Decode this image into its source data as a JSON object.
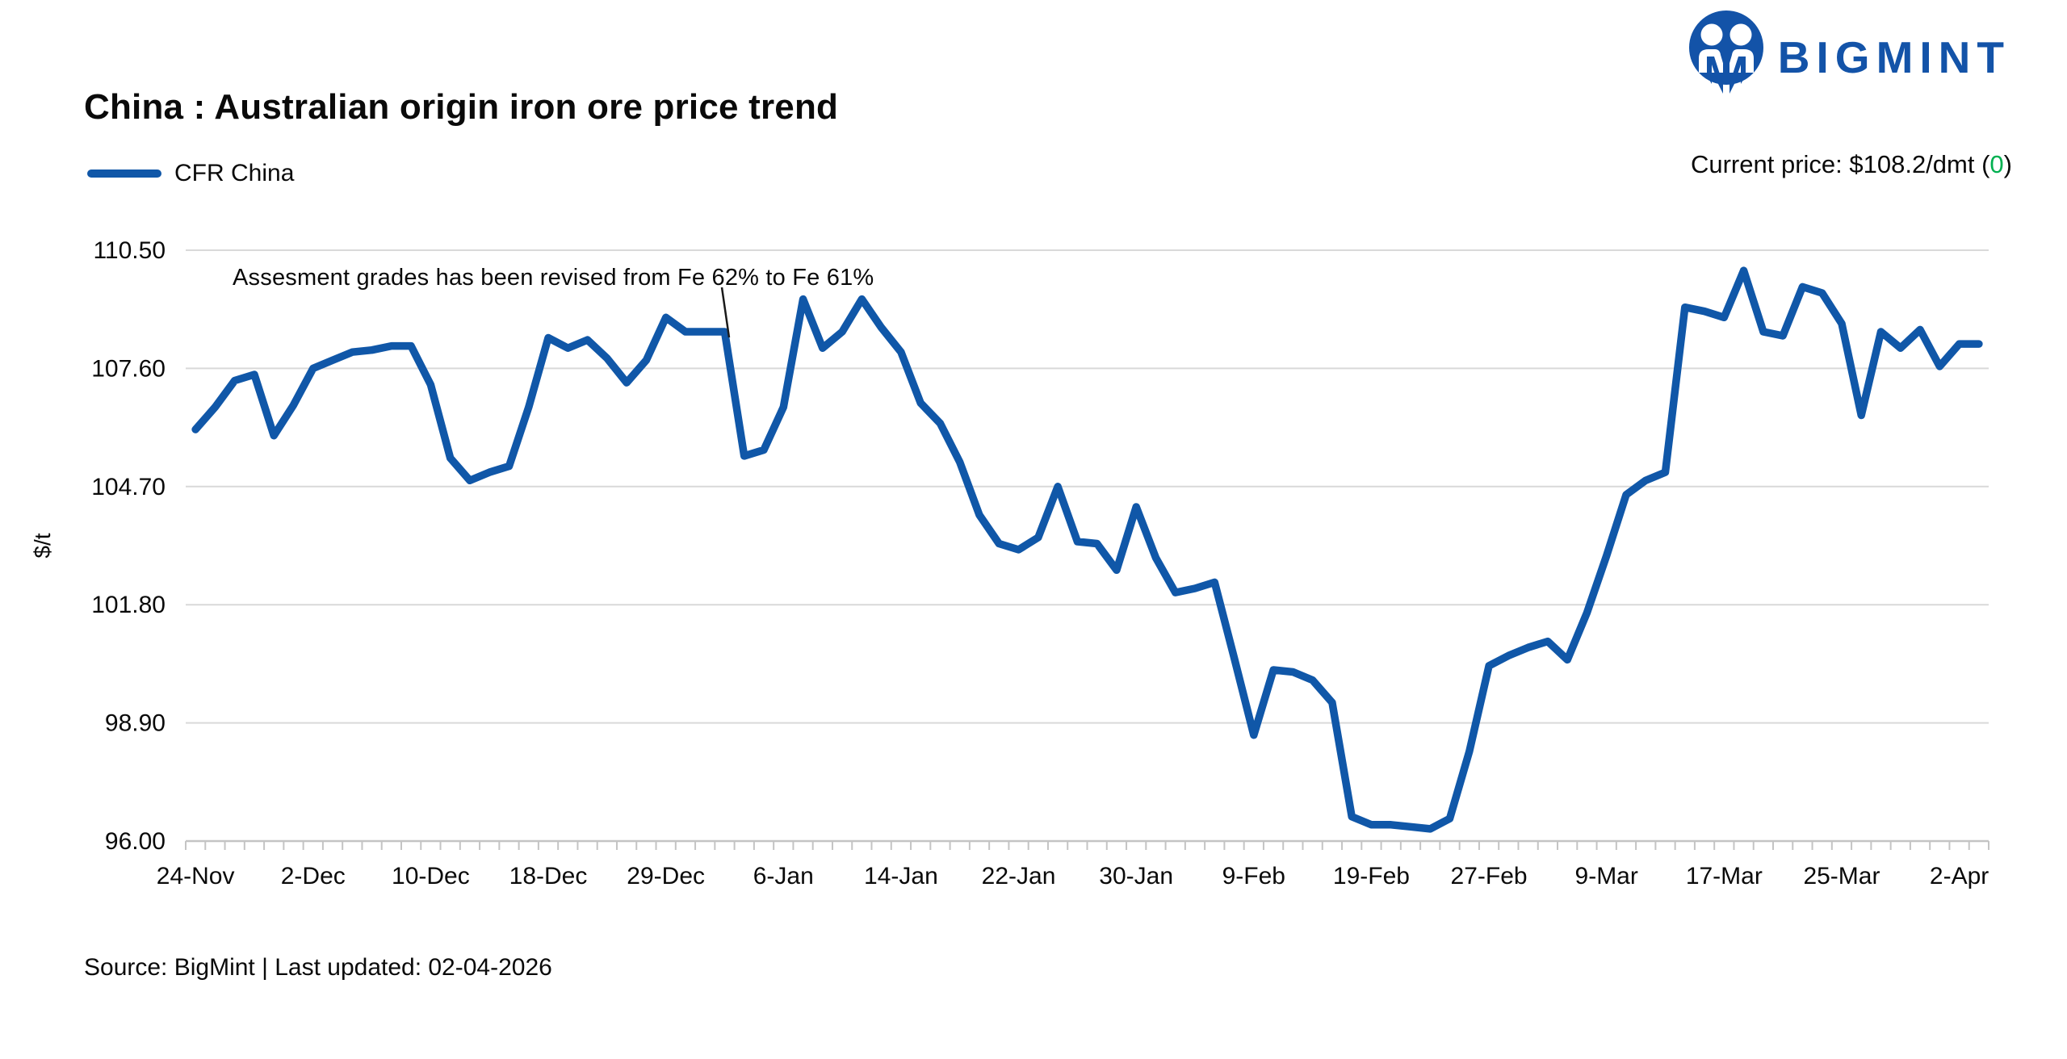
{
  "header": {
    "title": "China : Australian origin iron ore price trend",
    "logo_text": "BIGMINT"
  },
  "legend": {
    "label": "CFR China"
  },
  "current_price": {
    "label_prefix": "Current price: $108.2/dmt",
    "paren_open": " (",
    "change_value": "0",
    "paren_close": ")"
  },
  "annotation": {
    "text": "Assesment grades has been revised from Fe 62% to Fe 61%"
  },
  "source_line": "Source: BigMint | Last updated: 02-04-2026",
  "colors": {
    "series": "#1057a8",
    "logo_blue": "#1353a8",
    "change_green": "#00b050",
    "grid": "#d9d9d9",
    "axis": "#c4c4c4",
    "text": "#0a0a0a"
  },
  "chart_data": {
    "type": "line",
    "title": "China : Australian origin iron ore price trend",
    "series_name": "CFR China",
    "xlabel": "",
    "ylabel": "$/t",
    "ylim": [
      96.0,
      110.5
    ],
    "grid": "horizontal",
    "legend_position": "top-left",
    "y_ticks": [
      {
        "label": "110.50",
        "value": 110.5
      },
      {
        "label": "107.60",
        "value": 107.6
      },
      {
        "label": "104.70",
        "value": 104.7
      },
      {
        "label": "101.80",
        "value": 101.8
      },
      {
        "label": "98.90",
        "value": 98.9
      },
      {
        "label": "96.00",
        "value": 96.0
      }
    ],
    "x_tick_labels": [
      "24-Nov",
      "2-Dec",
      "10-Dec",
      "18-Dec",
      "29-Dec",
      "6-Jan",
      "14-Jan",
      "22-Jan",
      "30-Jan",
      "9-Feb",
      "19-Feb",
      "27-Feb",
      "9-Mar",
      "17-Mar",
      "25-Mar",
      "2-Apr"
    ],
    "x_label_slot_step": 6,
    "values": [
      106.1,
      106.65,
      107.3,
      107.45,
      105.95,
      106.7,
      107.6,
      107.8,
      108.0,
      108.05,
      108.15,
      108.15,
      107.2,
      105.4,
      104.85,
      105.05,
      105.2,
      106.65,
      108.35,
      108.1,
      108.3,
      107.85,
      107.25,
      107.8,
      108.85,
      108.5,
      108.5,
      108.5,
      105.45,
      105.6,
      106.65,
      109.3,
      108.1,
      108.5,
      109.3,
      108.6,
      108.0,
      106.75,
      106.25,
      105.3,
      104.0,
      103.3,
      103.15,
      103.45,
      104.7,
      103.35,
      103.3,
      102.65,
      104.2,
      102.95,
      102.1,
      102.2,
      102.35,
      100.5,
      98.6,
      100.2,
      100.15,
      99.95,
      99.4,
      96.6,
      96.4,
      96.4,
      96.35,
      96.3,
      96.55,
      98.2,
      100.3,
      100.55,
      100.75,
      100.9,
      100.45,
      101.6,
      103.0,
      104.5,
      104.85,
      105.05,
      109.1,
      109.0,
      108.85,
      110.0,
      108.5,
      108.4,
      109.6,
      109.45,
      108.7,
      106.45,
      108.5,
      108.1,
      108.55,
      107.65,
      108.2,
      108.2
    ],
    "current_price_label": "$108.2/dmt",
    "current_change": "0"
  }
}
